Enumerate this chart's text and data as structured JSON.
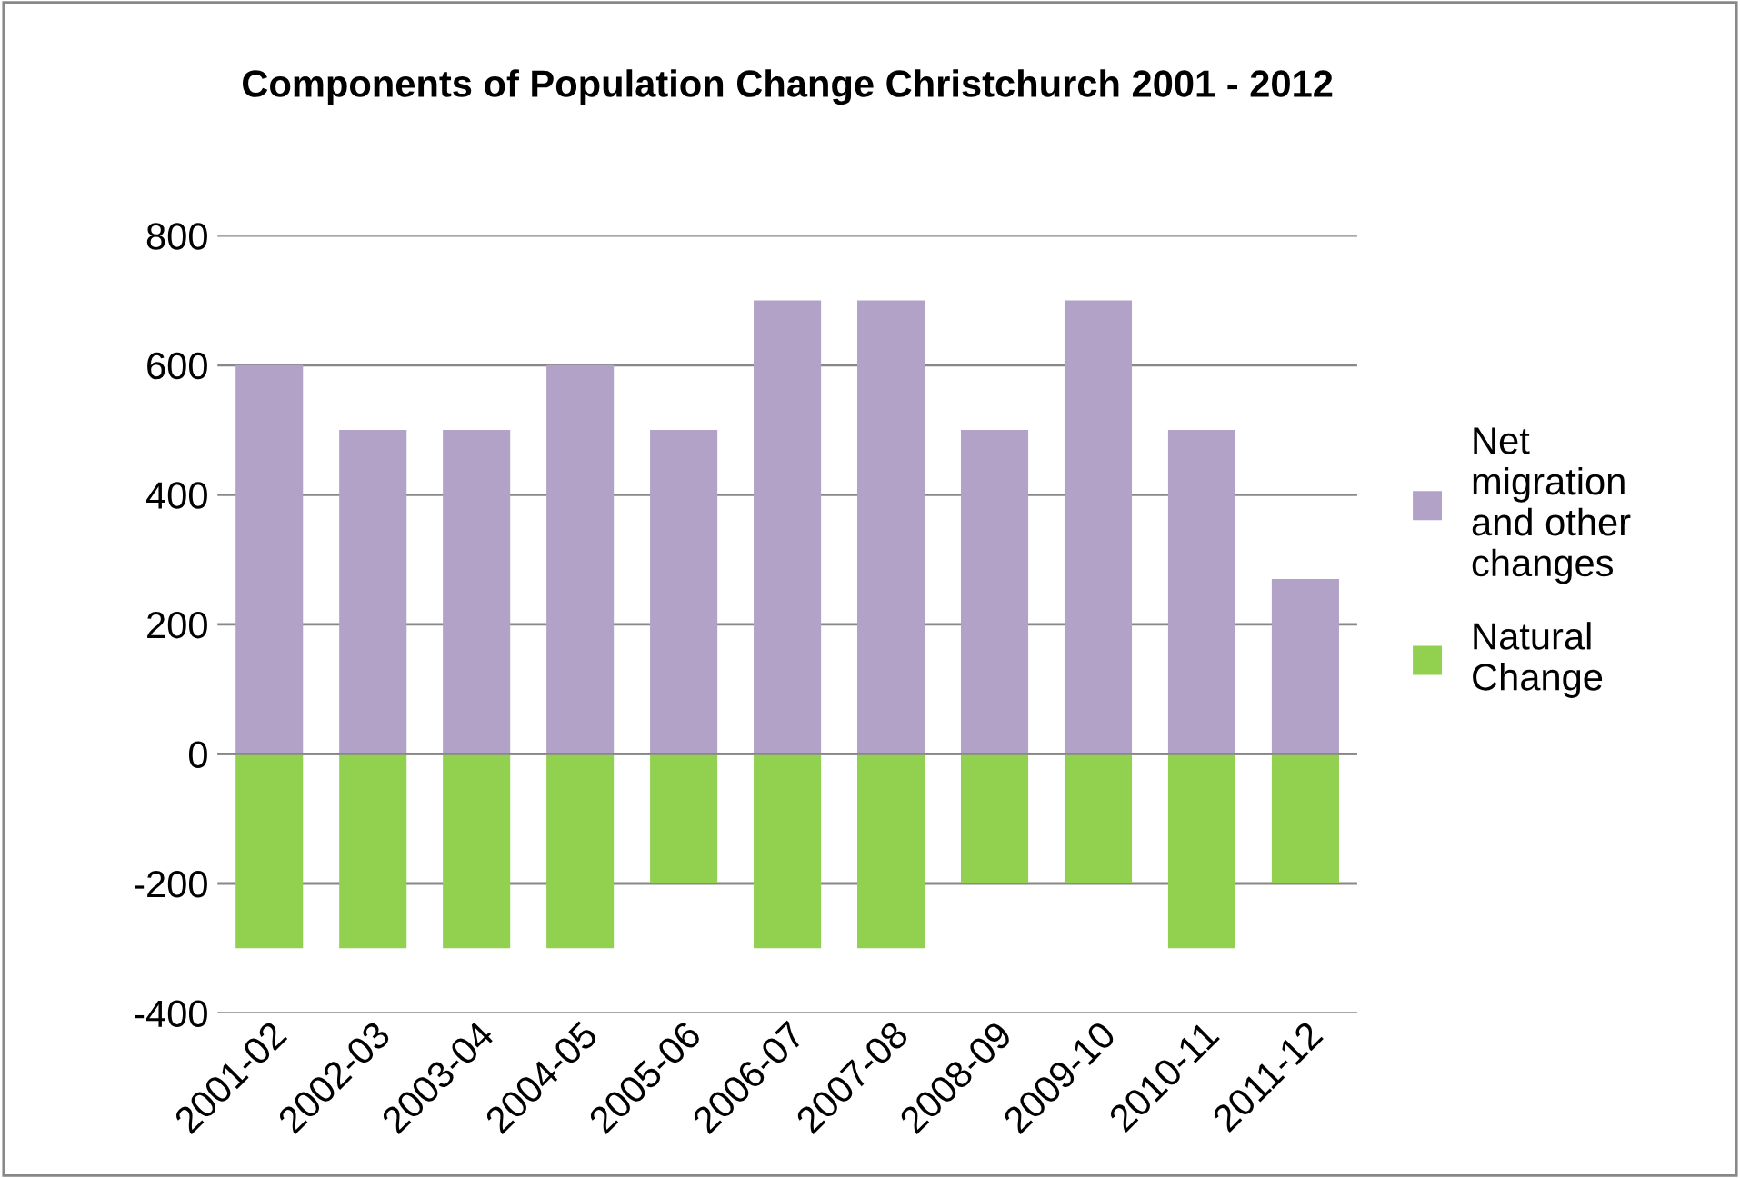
{
  "chart_data": {
    "type": "bar",
    "title": "Components of Population Change Christchurch 2001 - 2012",
    "categories": [
      "2001-02",
      "2002-03",
      "2003-04",
      "2004-05",
      "2005-06",
      "2006-07",
      "2007-08",
      "2008-09",
      "2009-10",
      "2010-11",
      "2011-12"
    ],
    "series": [
      {
        "name": "Net migration and other changes",
        "color": "#b2a2c7",
        "values": [
          600,
          500,
          500,
          600,
          500,
          700,
          700,
          500,
          700,
          500,
          270
        ]
      },
      {
        "name": "Natural Change",
        "color": "#92d050",
        "values": [
          -300,
          -300,
          -300,
          -300,
          -200,
          -300,
          -300,
          -200,
          -200,
          -300,
          -200
        ]
      }
    ],
    "stacked": true,
    "ylim": [
      -400,
      800
    ],
    "yticks": [
      -400,
      -200,
      0,
      200,
      400,
      600,
      800
    ],
    "grid": "y",
    "legend": "right"
  }
}
